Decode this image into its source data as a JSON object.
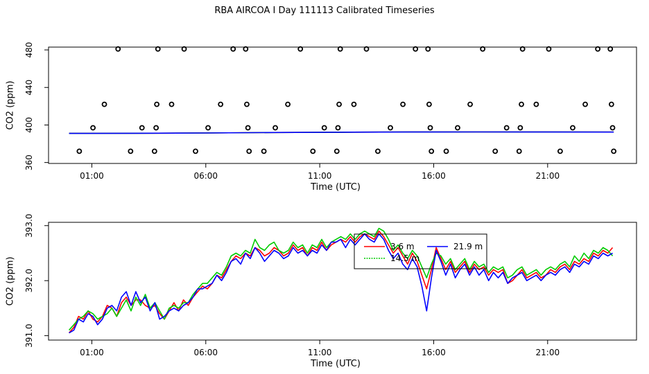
{
  "title": "RBA AIRCOA I  Day 111113  Calibrated Timeseries",
  "chart_data": [
    {
      "type": "scatter",
      "xlabel": "Time (UTC)",
      "ylabel": "CO2 (ppm)",
      "x_ticks": [
        "01:00",
        "06:00",
        "11:00",
        "16:00",
        "21:00"
      ],
      "x_tick_values": [
        1,
        6,
        11,
        16,
        21
      ],
      "y_ticks": [
        "360",
        "400",
        "440",
        "480"
      ],
      "y_tick_values": [
        360,
        400,
        440,
        480
      ],
      "xlim": [
        -0.9,
        24.9
      ],
      "ylim": [
        359,
        483
      ],
      "grid": false,
      "points": [
        {
          "x": 0.45,
          "y": 372
        },
        {
          "x": 1.05,
          "y": 397
        },
        {
          "x": 1.55,
          "y": 422
        },
        {
          "x": 2.15,
          "y": 481
        },
        {
          "x": 2.7,
          "y": 372
        },
        {
          "x": 3.2,
          "y": 397
        },
        {
          "x": 3.75,
          "y": 372
        },
        {
          "x": 3.82,
          "y": 397
        },
        {
          "x": 3.85,
          "y": 422
        },
        {
          "x": 3.9,
          "y": 481
        },
        {
          "x": 4.5,
          "y": 422
        },
        {
          "x": 5.05,
          "y": 481
        },
        {
          "x": 5.55,
          "y": 372
        },
        {
          "x": 6.1,
          "y": 397
        },
        {
          "x": 6.65,
          "y": 422
        },
        {
          "x": 7.2,
          "y": 481
        },
        {
          "x": 7.75,
          "y": 481
        },
        {
          "x": 7.8,
          "y": 422
        },
        {
          "x": 7.85,
          "y": 397
        },
        {
          "x": 7.9,
          "y": 372
        },
        {
          "x": 8.55,
          "y": 372
        },
        {
          "x": 9.05,
          "y": 397
        },
        {
          "x": 9.6,
          "y": 422
        },
        {
          "x": 10.15,
          "y": 481
        },
        {
          "x": 10.7,
          "y": 372
        },
        {
          "x": 11.2,
          "y": 397
        },
        {
          "x": 11.75,
          "y": 372
        },
        {
          "x": 11.8,
          "y": 397
        },
        {
          "x": 11.85,
          "y": 422
        },
        {
          "x": 11.9,
          "y": 481
        },
        {
          "x": 12.5,
          "y": 422
        },
        {
          "x": 13.05,
          "y": 481
        },
        {
          "x": 13.55,
          "y": 372
        },
        {
          "x": 14.1,
          "y": 397
        },
        {
          "x": 14.65,
          "y": 422
        },
        {
          "x": 15.2,
          "y": 481
        },
        {
          "x": 15.75,
          "y": 481
        },
        {
          "x": 15.8,
          "y": 422
        },
        {
          "x": 15.85,
          "y": 397
        },
        {
          "x": 15.9,
          "y": 372
        },
        {
          "x": 16.55,
          "y": 372
        },
        {
          "x": 17.05,
          "y": 397
        },
        {
          "x": 17.6,
          "y": 422
        },
        {
          "x": 18.15,
          "y": 481
        },
        {
          "x": 18.7,
          "y": 372
        },
        {
          "x": 19.2,
          "y": 397
        },
        {
          "x": 19.75,
          "y": 372
        },
        {
          "x": 19.8,
          "y": 397
        },
        {
          "x": 19.85,
          "y": 422
        },
        {
          "x": 19.9,
          "y": 481
        },
        {
          "x": 20.5,
          "y": 422
        },
        {
          "x": 21.05,
          "y": 481
        },
        {
          "x": 21.55,
          "y": 372
        },
        {
          "x": 22.1,
          "y": 397
        },
        {
          "x": 22.65,
          "y": 422
        },
        {
          "x": 23.2,
          "y": 481
        },
        {
          "x": 23.75,
          "y": 481
        },
        {
          "x": 23.8,
          "y": 422
        },
        {
          "x": 23.85,
          "y": 397
        },
        {
          "x": 23.9,
          "y": 372
        }
      ],
      "series": [
        {
          "color": "#ff0000",
          "x_start": 0,
          "x_end": 23.9,
          "values": [
            391.0,
            391.2,
            391.5,
            392.0,
            392.3,
            392.5,
            392.6,
            392.5,
            392.4
          ]
        },
        {
          "color": "#00cc00",
          "x_start": 0,
          "x_end": 23.9,
          "values": [
            391.0,
            391.2,
            391.5,
            392.0,
            392.3,
            392.5,
            392.6,
            392.5,
            392.4
          ]
        },
        {
          "color": "#0000ff",
          "x_start": 0,
          "x_end": 23.9,
          "values": [
            391.0,
            391.2,
            391.5,
            392.0,
            392.3,
            392.5,
            392.6,
            392.5,
            392.4
          ]
        }
      ]
    },
    {
      "type": "line",
      "xlabel": "Time (UTC)",
      "ylabel": "CO2 (ppm)",
      "x_ticks": [
        "01:00",
        "06:00",
        "11:00",
        "16:00",
        "21:00"
      ],
      "x_tick_values": [
        1,
        6,
        11,
        16,
        21
      ],
      "y_ticks": [
        "391.0",
        "392.0",
        "393.0"
      ],
      "y_tick_values": [
        391.0,
        392.0,
        393.0
      ],
      "xlim": [
        -0.9,
        24.9
      ],
      "ylim": [
        390.92,
        393.06
      ],
      "grid": false,
      "legend": "top-center",
      "series": [
        {
          "name": "3.6 m",
          "color": "#ff0000",
          "x_start": 0.0,
          "x_end": 23.85,
          "values": [
            391.05,
            391.15,
            391.35,
            391.3,
            391.45,
            391.3,
            391.25,
            391.35,
            391.55,
            391.5,
            391.35,
            391.6,
            391.7,
            391.55,
            391.65,
            391.65,
            391.55,
            391.5,
            391.55,
            391.4,
            391.3,
            391.45,
            391.6,
            391.45,
            391.65,
            391.55,
            391.7,
            391.8,
            391.9,
            391.85,
            391.95,
            392.1,
            392.05,
            392.2,
            392.35,
            392.45,
            392.4,
            392.5,
            392.45,
            392.6,
            392.55,
            392.45,
            392.5,
            392.6,
            392.55,
            392.45,
            392.5,
            392.65,
            392.55,
            392.6,
            392.45,
            392.6,
            392.55,
            392.7,
            392.55,
            392.65,
            392.7,
            392.75,
            392.7,
            392.8,
            392.7,
            392.8,
            392.85,
            392.8,
            392.75,
            392.9,
            392.8,
            392.65,
            392.5,
            392.6,
            392.45,
            392.3,
            392.5,
            392.35,
            392.1,
            391.85,
            392.2,
            392.6,
            392.4,
            392.2,
            392.35,
            392.15,
            392.25,
            392.35,
            392.15,
            392.3,
            392.2,
            392.25,
            392.1,
            392.2,
            392.15,
            392.2,
            391.95,
            392.0,
            392.1,
            392.2,
            392.05,
            392.1,
            392.15,
            392.05,
            392.1,
            392.2,
            392.15,
            392.25,
            392.3,
            392.2,
            392.35,
            392.3,
            392.4,
            392.35,
            392.5,
            392.45,
            392.55,
            392.5,
            392.6
          ]
        },
        {
          "name": "14.5 m",
          "color": "#00cc00",
          "x_start": 0.0,
          "x_end": 23.85,
          "values": [
            391.1,
            391.2,
            391.3,
            391.35,
            391.45,
            391.4,
            391.3,
            391.35,
            391.4,
            391.5,
            391.35,
            391.5,
            391.65,
            391.45,
            391.7,
            391.55,
            391.75,
            391.5,
            391.6,
            391.45,
            391.3,
            391.5,
            391.55,
            391.5,
            391.6,
            391.6,
            391.75,
            391.85,
            391.95,
            391.95,
            392.05,
            392.15,
            392.1,
            392.25,
            392.45,
            392.5,
            392.45,
            392.55,
            392.5,
            392.75,
            392.6,
            392.55,
            392.65,
            392.7,
            392.55,
            392.5,
            392.55,
            392.7,
            392.6,
            392.65,
            392.5,
            392.65,
            392.6,
            392.75,
            392.6,
            392.7,
            392.75,
            392.8,
            392.75,
            392.85,
            392.75,
            392.85,
            392.9,
            392.85,
            392.8,
            392.95,
            392.9,
            392.75,
            392.55,
            392.65,
            392.5,
            392.4,
            392.55,
            392.45,
            392.25,
            392.05,
            392.3,
            392.5,
            392.45,
            392.3,
            392.4,
            392.2,
            392.3,
            392.4,
            392.2,
            392.35,
            392.25,
            392.3,
            392.15,
            392.25,
            392.2,
            392.25,
            392.05,
            392.1,
            392.2,
            392.25,
            392.1,
            392.15,
            392.2,
            392.1,
            392.2,
            392.25,
            392.2,
            392.3,
            392.35,
            392.25,
            392.45,
            392.35,
            392.5,
            392.4,
            392.55,
            392.5,
            392.6,
            392.55,
            392.45
          ]
        },
        {
          "name": "21.9 m",
          "color": "#0000ff",
          "x_start": 0.0,
          "x_end": 23.85,
          "values": [
            391.05,
            391.1,
            391.3,
            391.25,
            391.4,
            391.35,
            391.2,
            391.3,
            391.5,
            391.55,
            391.45,
            391.7,
            391.8,
            391.55,
            391.8,
            391.6,
            391.7,
            391.45,
            391.6,
            391.3,
            391.35,
            391.45,
            391.5,
            391.45,
            391.55,
            391.6,
            391.7,
            391.85,
            391.85,
            391.9,
            391.95,
            392.1,
            392.0,
            392.15,
            392.35,
            392.4,
            392.3,
            392.5,
            392.4,
            392.6,
            392.5,
            392.35,
            392.45,
            392.55,
            392.5,
            392.4,
            392.45,
            392.6,
            392.5,
            392.55,
            392.45,
            392.55,
            392.5,
            392.65,
            392.55,
            392.7,
            392.7,
            392.75,
            392.6,
            392.75,
            392.65,
            392.75,
            392.85,
            392.75,
            392.7,
            392.85,
            392.75,
            392.55,
            392.4,
            392.5,
            392.3,
            392.2,
            392.4,
            392.25,
            391.9,
            391.45,
            392.05,
            392.55,
            392.35,
            392.1,
            392.3,
            392.05,
            392.2,
            392.3,
            392.1,
            392.25,
            392.1,
            392.2,
            392.0,
            392.15,
            392.05,
            392.15,
            391.95,
            392.05,
            392.1,
            392.15,
            392.0,
            392.05,
            392.1,
            392.0,
            392.1,
            392.15,
            392.1,
            392.2,
            392.25,
            392.15,
            392.3,
            392.25,
            392.35,
            392.3,
            392.45,
            392.4,
            392.5,
            392.45,
            392.5
          ]
        }
      ]
    }
  ]
}
